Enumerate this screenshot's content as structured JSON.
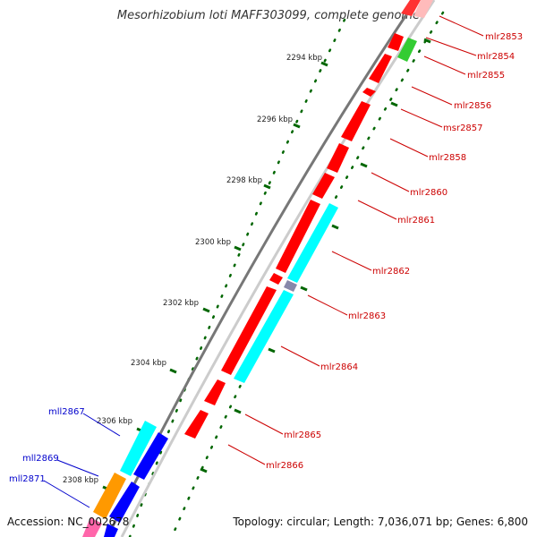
{
  "title": "Mesorhizobium loti MAFF303099, complete genome",
  "footer": {
    "accession": "Accession: NC_002678",
    "summary": "Topology: circular; Length: 7,036,071 bp; Genes: 6,800"
  },
  "ticks": [
    "2294 kbp",
    "2296 kbp",
    "2298 kbp",
    "2300 kbp",
    "2302 kbp",
    "2304 kbp",
    "2306 kbp",
    "2308 kbp"
  ],
  "right_genes": [
    "mlr2853",
    "mlr2854",
    "mlr2855",
    "mlr2856",
    "msr2857",
    "mlr2858",
    "mlr2860",
    "mlr2861",
    "mlr2862",
    "mlr2863",
    "mlr2864",
    "mlr2865",
    "mlr2866"
  ],
  "left_genes": [
    "mll2867",
    "mll2869",
    "mll2871"
  ],
  "colors": {
    "forward_gene": "#ff0000",
    "reverse_gene": "#0000ff",
    "label_forward": "#cc0000",
    "label_reverse": "#0000cc",
    "backbone": "#888888",
    "ticks": "#006600",
    "cyan_gene": "#00ffff",
    "green_gene": "#33cc33",
    "orange_gene": "#ff9900"
  }
}
